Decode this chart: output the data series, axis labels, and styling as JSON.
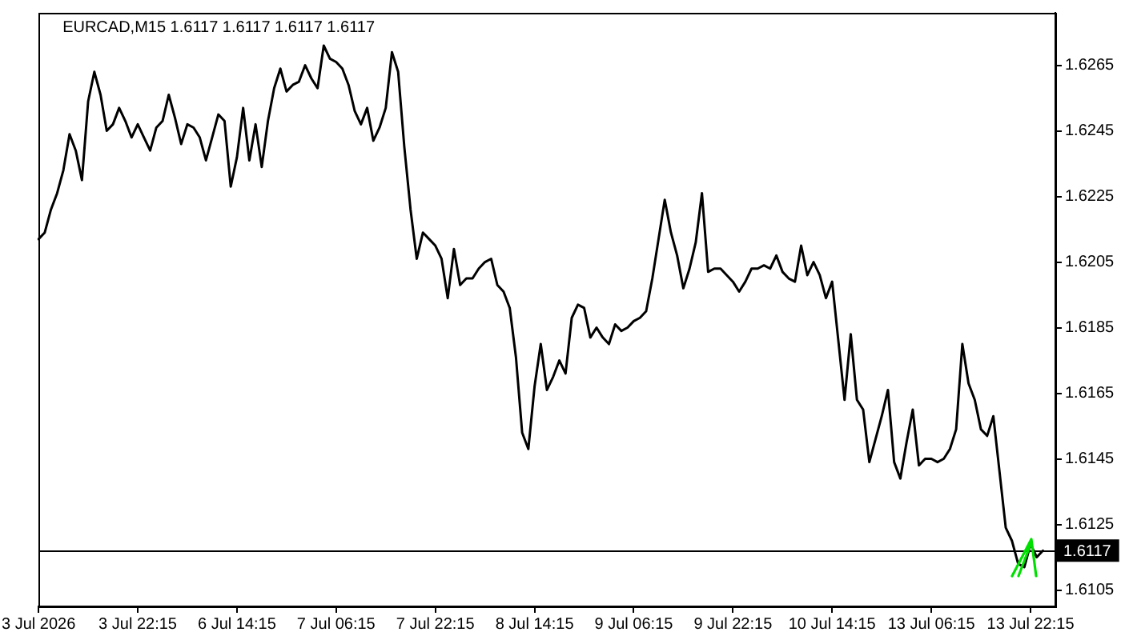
{
  "chart_data": {
    "type": "line",
    "title": "EURCAD,M15 1.6117 1.6117 1.6117 1.6117",
    "categories": [
      "3 Jul 2026",
      null,
      null,
      null,
      null,
      null,
      null,
      null,
      null,
      null,
      null,
      null,
      null,
      null,
      null,
      null,
      "3 Jul 22:15",
      null,
      null,
      null,
      null,
      null,
      null,
      null,
      null,
      null,
      null,
      null,
      null,
      null,
      null,
      null,
      "6 Jul 14:15",
      null,
      null,
      null,
      null,
      null,
      null,
      null,
      null,
      null,
      null,
      null,
      null,
      null,
      null,
      null,
      "7 Jul 06:15",
      null,
      null,
      null,
      null,
      null,
      null,
      null,
      null,
      null,
      null,
      null,
      null,
      null,
      null,
      null,
      "7 Jul 22:15",
      null,
      null,
      null,
      null,
      null,
      null,
      null,
      null,
      null,
      null,
      null,
      null,
      null,
      null,
      null,
      "8 Jul 14:15",
      null,
      null,
      null,
      null,
      null,
      null,
      null,
      null,
      null,
      null,
      null,
      null,
      null,
      null,
      null,
      "9 Jul 06:15",
      null,
      null,
      null,
      null,
      null,
      null,
      null,
      null,
      null,
      null,
      null,
      null,
      null,
      null,
      null,
      "9 Jul 22:15",
      null,
      null,
      null,
      null,
      null,
      null,
      null,
      null,
      null,
      null,
      null,
      null,
      null,
      null,
      null,
      "10 Jul 14:15",
      null,
      null,
      null,
      null,
      null,
      null,
      null,
      null,
      null,
      null,
      null,
      null,
      null,
      null,
      null,
      "13 Jul 06:15",
      null,
      null,
      null,
      null,
      null,
      null,
      null,
      null,
      null,
      null,
      null,
      null,
      null,
      null,
      null,
      "13 Jul 22:15",
      null,
      null,
      null,
      null
    ],
    "ylim": [
      1.61,
      1.6281
    ],
    "yticks": [
      1.6105,
      1.6125,
      1.6145,
      1.6165,
      1.6185,
      1.6205,
      1.6225,
      1.6245,
      1.6265
    ],
    "ref_lines": [
      {
        "axis": "y",
        "value": 1.6117,
        "label": "1.6117",
        "color": "#000000"
      }
    ],
    "series": [
      {
        "color": "#000000",
        "values": [
          1.6212,
          1.6214,
          1.6221,
          1.6226,
          1.6233,
          1.6244,
          1.6239,
          1.623,
          1.6254,
          1.6263,
          1.6256,
          1.6245,
          1.6247,
          1.6252,
          1.6248,
          1.6243,
          1.6247,
          1.6243,
          1.6239,
          1.6246,
          1.6248,
          1.6256,
          1.6249,
          1.6241,
          1.6247,
          1.6246,
          1.6243,
          1.6236,
          1.6243,
          1.625,
          1.6248,
          1.6228,
          1.6237,
          1.6252,
          1.6236,
          1.6247,
          1.6234,
          1.6248,
          1.6258,
          1.6264,
          1.6257,
          1.6259,
          1.626,
          1.6265,
          1.6261,
          1.6258,
          1.6271,
          1.6267,
          1.6266,
          1.6264,
          1.6259,
          1.6251,
          1.6247,
          1.6252,
          1.6242,
          1.6246,
          1.6252,
          1.6269,
          1.6263,
          1.624,
          1.6221,
          1.6206,
          1.6214,
          1.6212,
          1.621,
          1.6206,
          1.6194,
          1.6209,
          1.6198,
          1.62,
          1.62,
          1.6203,
          1.6205,
          1.6206,
          1.6198,
          1.6196,
          1.6191,
          1.6176,
          1.6153,
          1.6148,
          1.6167,
          1.618,
          1.6166,
          1.617,
          1.6175,
          1.6171,
          1.6188,
          1.6192,
          1.6191,
          1.6182,
          1.6185,
          1.6182,
          1.618,
          1.6186,
          1.6184,
          1.6185,
          1.6187,
          1.6188,
          1.619,
          1.62,
          1.6212,
          1.6224,
          1.6214,
          1.6207,
          1.6197,
          1.6203,
          1.6211,
          1.6226,
          1.6202,
          1.6203,
          1.6203,
          1.6201,
          1.6199,
          1.6196,
          1.6199,
          1.6203,
          1.6203,
          1.6204,
          1.6203,
          1.6207,
          1.6202,
          1.62,
          1.6199,
          1.621,
          1.6201,
          1.6205,
          1.6201,
          1.6194,
          1.6199,
          1.6181,
          1.6163,
          1.6183,
          1.6163,
          1.616,
          1.6144,
          1.6151,
          1.6158,
          1.6166,
          1.6144,
          1.6139,
          1.615,
          1.616,
          1.6143,
          1.6145,
          1.6145,
          1.6144,
          1.6145,
          1.6148,
          1.6154,
          1.618,
          1.6168,
          1.6163,
          1.6154,
          1.6152,
          1.6158,
          1.6141,
          1.6124,
          1.612,
          1.6113,
          1.6112,
          1.6119,
          1.6115,
          1.6117,
          null,
          null
        ]
      }
    ]
  }
}
